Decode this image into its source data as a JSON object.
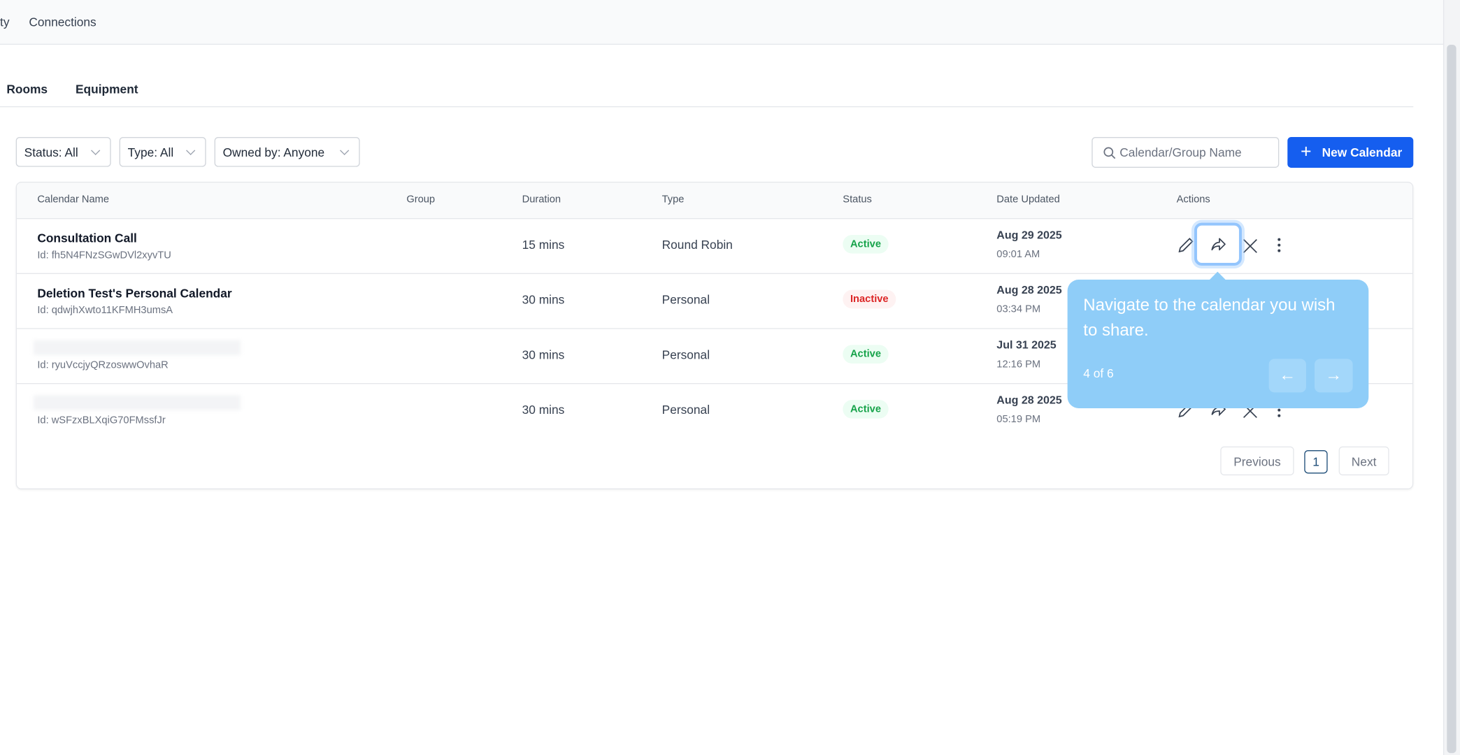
{
  "nav": {
    "items": [
      "ty",
      "Connections"
    ]
  },
  "tabs": [
    "Rooms",
    "Equipment"
  ],
  "filters": [
    "Status: All",
    "Type: All",
    "Owned by: Anyone"
  ],
  "search": {
    "placeholder": "Calendar/Group Name"
  },
  "new_button": "New Calendar",
  "table": {
    "headers": [
      "Calendar Name",
      "Group",
      "Duration",
      "Type",
      "Status",
      "Date Updated",
      "Actions"
    ],
    "rows": [
      {
        "name": "Consultation Call",
        "id": "Id: fh5N4FNzSGwDVl2xyvTU",
        "duration": "15 mins",
        "type": "Round Robin",
        "status": "Active",
        "date": "Aug 29 2025",
        "time": "09:01 AM"
      },
      {
        "name": "Deletion Test's Personal Calendar",
        "id": "Id: qdwjhXwto11KFMH3umsA",
        "duration": "30 mins",
        "type": "Personal",
        "status": "Inactive",
        "date": "Aug 28 2025",
        "time": "03:34 PM"
      },
      {
        "name": null,
        "id": "Id: ryuVccjyQRzoswwOvhaR",
        "duration": "30 mins",
        "type": "Personal",
        "status": "Active",
        "date": "Jul 31 2025",
        "time": "12:16 PM"
      },
      {
        "name": null,
        "id": "Id: wSFzxBLXqiG70FMssfJr",
        "duration": "30 mins",
        "type": "Personal",
        "status": "Active",
        "date": "Aug 28 2025",
        "time": "05:19 PM"
      }
    ]
  },
  "pagination": {
    "previous": "Previous",
    "page": "1",
    "next": "Next"
  },
  "tooltip": {
    "text": "Navigate to the calendar you wish to share.",
    "step": "4 of 6"
  }
}
